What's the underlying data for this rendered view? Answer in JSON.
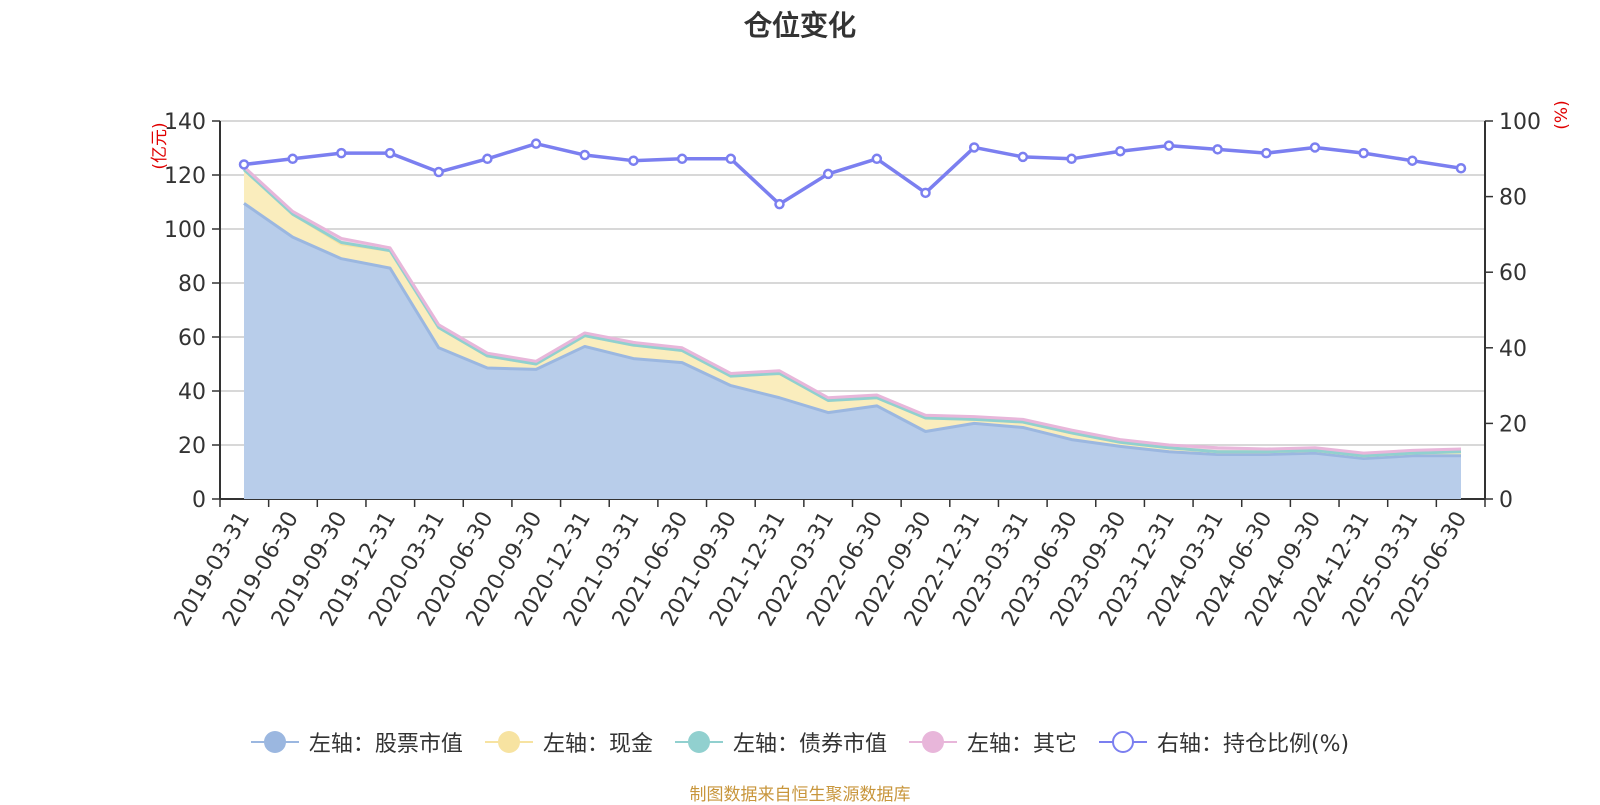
{
  "source_note": "制图数据来自恒生聚源数据库",
  "chart_data": {
    "type": "area",
    "title": "仓位变化",
    "left_axis": {
      "unit": "(亿元)",
      "ylim": [
        0,
        140
      ],
      "ticks": [
        0,
        20,
        40,
        60,
        80,
        100,
        120,
        140
      ]
    },
    "right_axis": {
      "unit": "(%)",
      "ylim": [
        0,
        100
      ],
      "ticks": [
        0,
        20,
        40,
        60,
        80,
        100
      ]
    },
    "unit_color": "#e00000",
    "grid": true,
    "legend_position": "bottom",
    "categories": [
      "2019-03-31",
      "2019-06-30",
      "2019-09-30",
      "2019-12-31",
      "2020-03-31",
      "2020-06-30",
      "2020-09-30",
      "2020-12-31",
      "2021-03-31",
      "2021-06-30",
      "2021-09-30",
      "2021-12-31",
      "2022-03-31",
      "2022-06-30",
      "2022-09-30",
      "2022-12-31",
      "2023-03-31",
      "2023-06-30",
      "2023-09-30",
      "2023-12-31",
      "2024-03-31",
      "2024-06-30",
      "2024-09-30",
      "2024-12-31",
      "2025-03-31",
      "2025-06-30"
    ],
    "series": [
      {
        "name": "左轴：股票市值",
        "axis": "left",
        "kind": "stacked-area",
        "color": "#9bb7e0",
        "fill": "#b8cdea",
        "values": [
          109.5,
          97,
          89,
          85.5,
          56,
          48.5,
          48,
          56.5,
          52,
          50.5,
          42,
          37.5,
          32,
          34.5,
          25,
          28,
          26.5,
          22,
          19.5,
          17.5,
          16.5,
          16.5,
          17,
          15,
          16,
          16
        ]
      },
      {
        "name": "左轴：现金",
        "axis": "left",
        "kind": "stacked-area",
        "color": "#f7e3a1",
        "fill": "#faedbd",
        "values": [
          12.5,
          8.5,
          5.5,
          6.5,
          7.5,
          4.5,
          2,
          4,
          5,
          4.5,
          3.5,
          9,
          4.5,
          3,
          5,
          1.5,
          2,
          2.5,
          1.5,
          1.5,
          1,
          1,
          1,
          1,
          1,
          1.5
        ]
      },
      {
        "name": "左轴：债券市值",
        "axis": "left",
        "kind": "stacked-area",
        "color": "#91d0cf",
        "fill": "#a9dcdb",
        "values": [
          0,
          0,
          0.5,
          0,
          0,
          0,
          0,
          0,
          0,
          0,
          0,
          0,
          0,
          0,
          0,
          0,
          0,
          0,
          0,
          0,
          0,
          0,
          0,
          0,
          0,
          0
        ]
      },
      {
        "name": "左轴：其它",
        "axis": "left",
        "kind": "stacked-area",
        "color": "#e8b6da",
        "fill": "#f1d2e8",
        "values": [
          1,
          1,
          1.5,
          1,
          1,
          1,
          1,
          1,
          1,
          1,
          1,
          1,
          1,
          1,
          1,
          1,
          1,
          1,
          1,
          1,
          1.5,
          1,
          1,
          1,
          1,
          1
        ]
      },
      {
        "name": "右轴：持仓比例(%)",
        "axis": "right",
        "kind": "line",
        "color": "#7b7ff0",
        "values": [
          88.5,
          90,
          91.5,
          91.5,
          86.5,
          90,
          94,
          91,
          89.5,
          90,
          90,
          78,
          86,
          90,
          81,
          93,
          90.5,
          90,
          92,
          93.5,
          92.5,
          91.5,
          93,
          91.5,
          89.5,
          87.5
        ]
      }
    ]
  }
}
